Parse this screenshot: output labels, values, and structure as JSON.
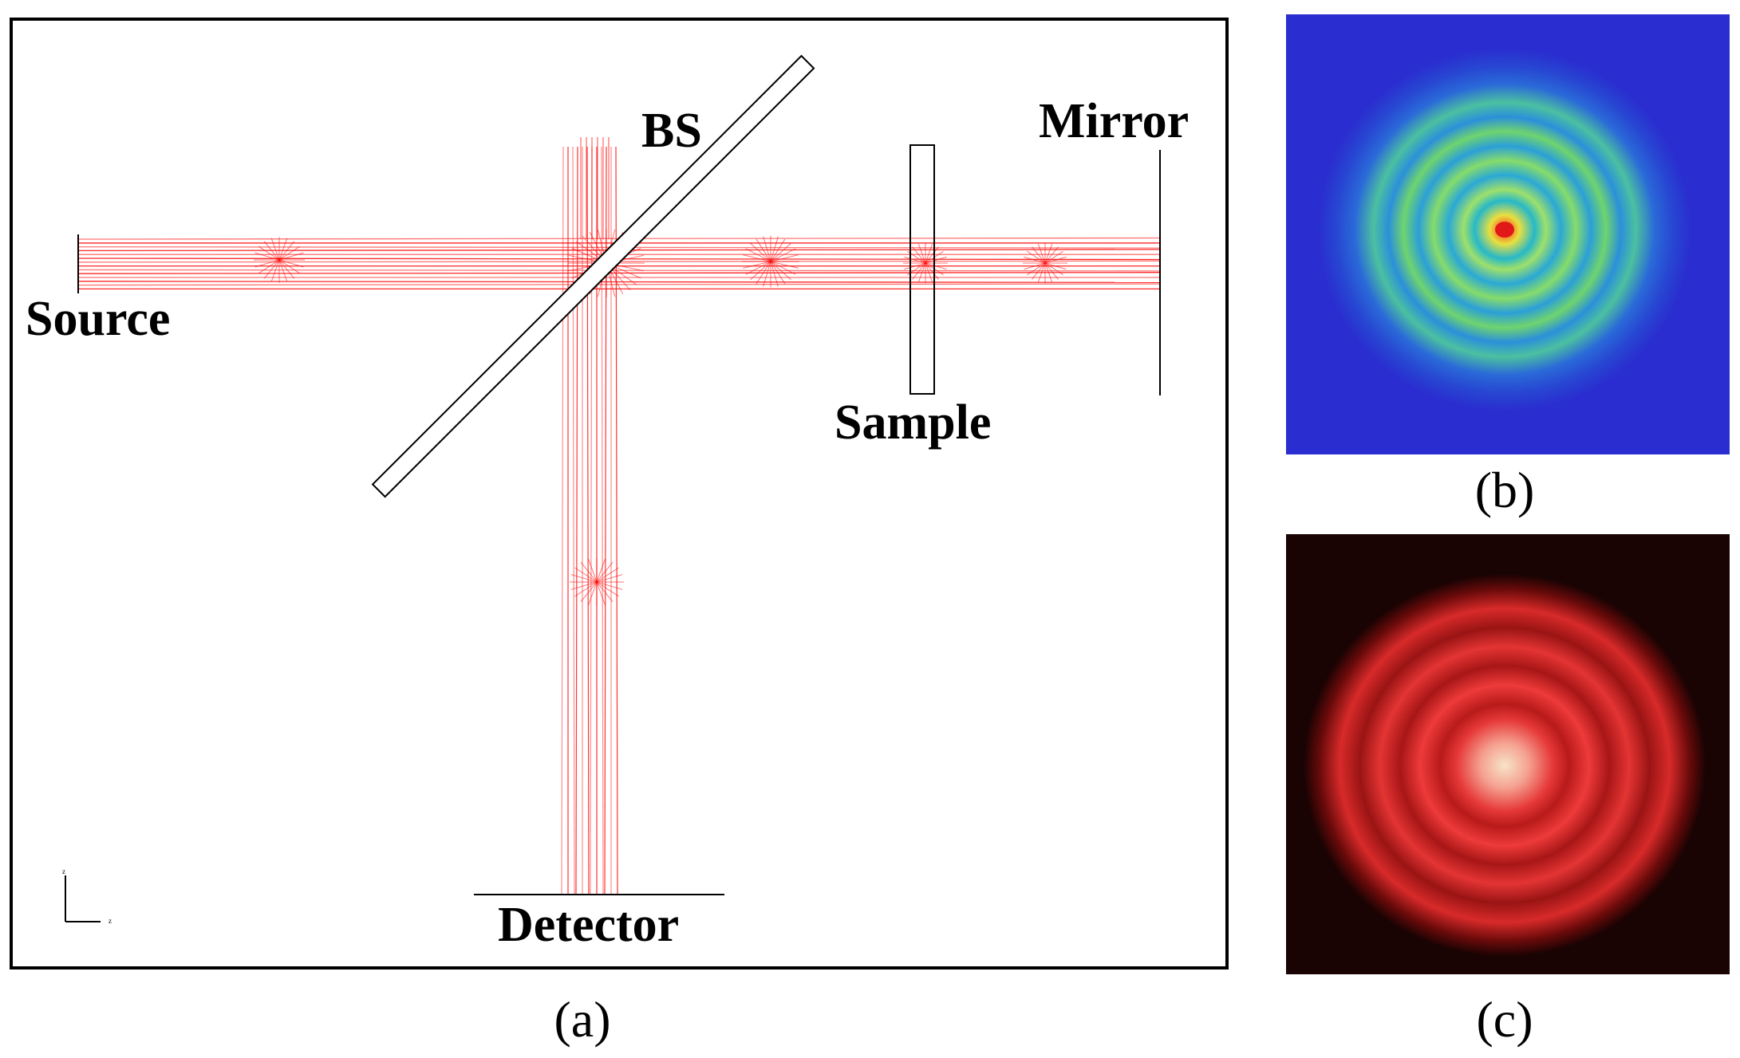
{
  "panel_a": {
    "labels": {
      "source": "Source",
      "bs": "BS",
      "sample": "Sample",
      "mirror": "Mirror",
      "detector": "Detector"
    },
    "caption": "(a)",
    "axis_glyph": {
      "vertical": "z",
      "horizontal": "z"
    }
  },
  "panel_b": {
    "caption": "(b)",
    "description_colors": {
      "background": "#2323d2",
      "ring": "#7ee07a",
      "center": "#e01f1f"
    }
  },
  "panel_c": {
    "caption": "(c)",
    "description_colors": {
      "background": "#1a0303",
      "ring": "#e83a3a",
      "center": "#f7d0b0"
    }
  },
  "colors": {
    "ray": "#ff0000",
    "frame": "#000000"
  }
}
